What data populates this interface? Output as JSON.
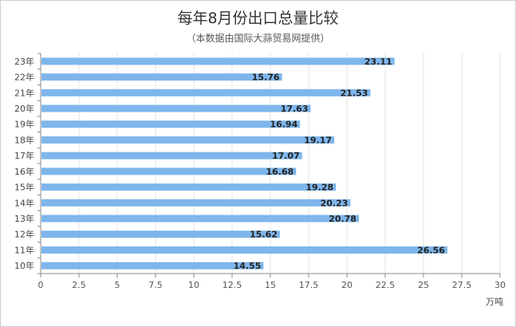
{
  "chart_data": {
    "type": "bar",
    "orientation": "horizontal",
    "title": "每年8月份出口总量比较",
    "subtitle": "（本数据由国际大蒜贸易网提供）",
    "x_unit": "万吨",
    "xlim": [
      0,
      30
    ],
    "x_ticks": [
      "0",
      "2.5",
      "5",
      "7.5",
      "10",
      "12.5",
      "15",
      "17.5",
      "20",
      "22.5",
      "25",
      "27.5",
      "30"
    ],
    "categories": [
      "23年",
      "22年",
      "21年",
      "20年",
      "19年",
      "18年",
      "17年",
      "16年",
      "15年",
      "14年",
      "13年",
      "12年",
      "11年",
      "10年"
    ],
    "values": [
      23.11,
      15.76,
      21.53,
      17.63,
      16.94,
      19.17,
      17.07,
      16.68,
      19.28,
      20.23,
      20.78,
      15.62,
      26.56,
      14.55
    ],
    "value_labels": [
      "23.11",
      "15.76",
      "21.53",
      "17.63",
      "16.94",
      "19.17",
      "17.07",
      "16.68",
      "19.28",
      "20.23",
      "20.78",
      "15.62",
      "26.56",
      "14.55"
    ],
    "grid": "vertical",
    "bar_color": "#7eb6ec"
  }
}
